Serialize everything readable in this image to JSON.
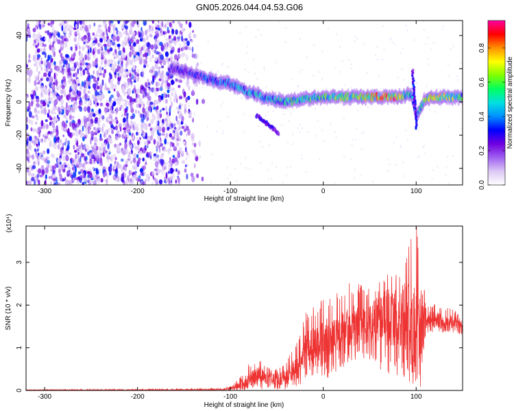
{
  "figure": {
    "title": "GN05.2026.044.04.53.G06"
  },
  "chart_data": [
    {
      "type": "heatmap",
      "title": "GN05.2026.044.04.53.G06",
      "xlabel": "Height of straight line (km)",
      "ylabel": "Frequency (Hz)",
      "xlim": [
        -320,
        150
      ],
      "ylim": [
        -50,
        49
      ],
      "x_ticks": [
        -300,
        -200,
        -100,
        0,
        100
      ],
      "y_ticks": [
        -40,
        -20,
        0,
        20,
        40
      ],
      "colorbar": {
        "label": "Normalized spectral amplitude",
        "range": [
          0,
          0.96
        ],
        "ticks": [
          0.0,
          0.2,
          0.4,
          0.6,
          0.8
        ],
        "colormap": [
          "#ffffff",
          "#dcc8f5",
          "#a060f0",
          "#7000e0",
          "#0000ff",
          "#0090ff",
          "#00e0e0",
          "#00ff60",
          "#80ff00",
          "#ffff00",
          "#ff9000",
          "#ff0000",
          "#ff00a0"
        ]
      },
      "signal_ridge": {
        "description_points_x": [
          -160,
          -140,
          -120,
          -100,
          -80,
          -60,
          -40,
          -20,
          0,
          20,
          40,
          60,
          80,
          95,
          100,
          110,
          130,
          150
        ],
        "frequency_hz": [
          20,
          17,
          13,
          11,
          6,
          2,
          0,
          2,
          3,
          3,
          3,
          3,
          3,
          5,
          -8,
          2,
          3,
          3
        ],
        "peak_amplitude": [
          0.3,
          0.35,
          0.4,
          0.45,
          0.5,
          0.5,
          0.55,
          0.6,
          0.6,
          0.65,
          0.75,
          0.8,
          0.85,
          0.5,
          0.4,
          0.8,
          0.7,
          0.6
        ]
      },
      "noise_region_x": [
        -320,
        -140
      ]
    },
    {
      "type": "line",
      "xlabel": "Height of straight line (km)",
      "ylabel": "SNR (10 * v/v)",
      "y_multiplier": "(x10⁴)",
      "xlim": [
        -320,
        150
      ],
      "ylim": [
        0,
        3.85
      ],
      "x_ticks": [
        -300,
        -200,
        -100,
        0,
        100
      ],
      "y_ticks": [
        0,
        1,
        2,
        3
      ],
      "color": "#ee3333",
      "envelope": {
        "x": [
          -320,
          -200,
          -110,
          -100,
          -90,
          -80,
          -70,
          -60,
          -50,
          -40,
          -30,
          -20,
          -10,
          0,
          10,
          20,
          30,
          40,
          50,
          60,
          70,
          80,
          90,
          95,
          100,
          105,
          110,
          120,
          130,
          140,
          150
        ],
        "mean": [
          0.01,
          0.01,
          0.02,
          0.05,
          0.12,
          0.25,
          0.35,
          0.3,
          0.25,
          0.3,
          0.5,
          0.9,
          1.0,
          1.1,
          1.2,
          1.3,
          1.45,
          1.55,
          1.6,
          1.65,
          1.7,
          1.7,
          1.75,
          1.5,
          1.4,
          1.5,
          1.65,
          1.65,
          1.6,
          1.6,
          1.55
        ],
        "max": [
          0.02,
          0.03,
          0.05,
          0.1,
          0.3,
          0.65,
          0.75,
          0.55,
          0.5,
          0.7,
          1.1,
          1.8,
          2.0,
          2.2,
          2.3,
          2.45,
          2.6,
          2.5,
          2.45,
          2.55,
          2.95,
          2.75,
          3.3,
          3.6,
          3.85,
          3.8,
          1.95,
          2.05,
          2.0,
          1.9,
          1.75
        ],
        "min": [
          0.0,
          0.0,
          0.0,
          0.0,
          0.0,
          0.02,
          0.03,
          0.02,
          0.02,
          0.03,
          0.1,
          0.15,
          0.2,
          0.2,
          0.35,
          0.5,
          0.7,
          0.75,
          0.7,
          0.5,
          0.4,
          0.35,
          0.3,
          0.05,
          0.0,
          0.05,
          1.25,
          1.35,
          1.35,
          1.35,
          1.3
        ]
      }
    }
  ]
}
